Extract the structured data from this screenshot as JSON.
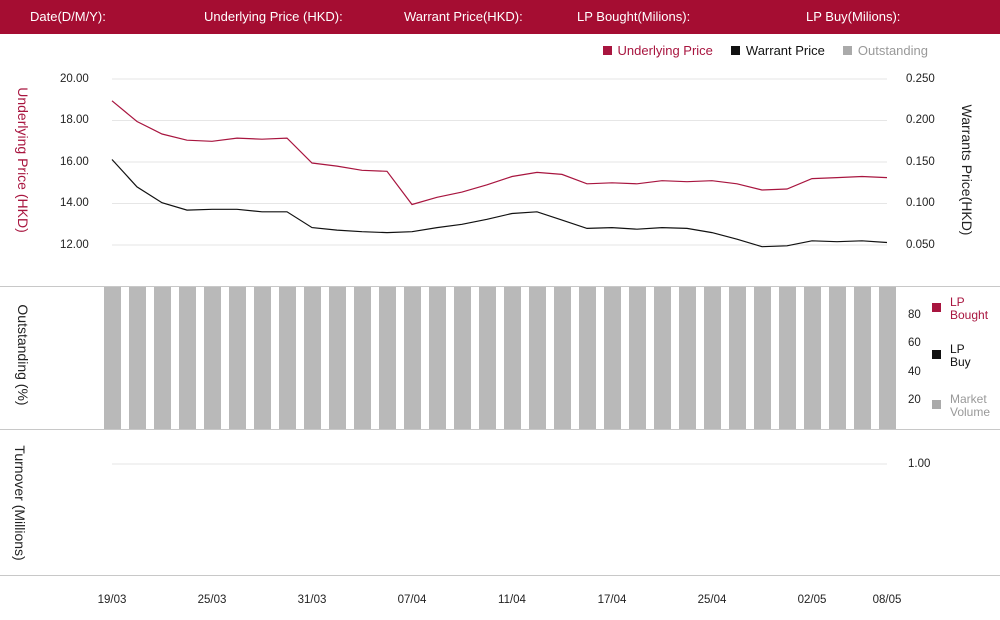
{
  "header": {
    "date_label": "Date(D/M/Y):",
    "underlying_label": "Underlying Price (HKD):",
    "warrant_label": "Warrant  Price(HKD):",
    "lp_bought_label": "LP Bought(Milions):",
    "lp_buy_label": "LP Buy(Milions):"
  },
  "colors": {
    "brand": "#a50d32",
    "underlying": "#a8153f",
    "warrant": "#111111",
    "outstanding": "#b9b9b9"
  },
  "legend_top": {
    "underlying": "Underlying Price",
    "warrant": "Warrant  Price",
    "outstanding": "Outstanding"
  },
  "panel1": {
    "left_axis_title": "Underlying Price (HKD)",
    "right_axis_title": "Warrants  Price(HKD)",
    "left_ticks": [
      "20.00",
      "18.00",
      "16.00",
      "14.00",
      "12.00"
    ],
    "right_ticks": [
      "0.250",
      "0.200",
      "0.150",
      "0.100",
      "0.050"
    ]
  },
  "panel2": {
    "axis_title": "Outstanding (%)",
    "ticks": [
      "80",
      "60",
      "40",
      "20"
    ],
    "legend": {
      "lp_bought": "LP Bought",
      "lp_buy": "LP Buy",
      "market_volume": "Market Volume"
    }
  },
  "panel3": {
    "axis_title": "Turnover (Millions)",
    "ticks": [
      "1.00"
    ]
  },
  "x_ticks": [
    "19/03",
    "25/03",
    "31/03",
    "07/04",
    "11/04",
    "17/04",
    "25/04",
    "02/05",
    "08/05"
  ],
  "chart_data": [
    {
      "type": "line",
      "x_index": [
        0,
        1,
        2,
        3,
        4,
        5,
        6,
        7,
        8,
        9,
        10,
        11,
        12,
        13,
        14,
        15,
        16,
        17,
        18,
        19,
        20,
        21,
        22,
        23,
        24,
        25,
        26,
        27,
        28,
        29,
        30,
        31
      ],
      "series": [
        {
          "name": "Underlying Price",
          "axis": "left",
          "values": [
            18.95,
            17.95,
            17.35,
            17.05,
            17.0,
            17.15,
            17.1,
            17.15,
            15.95,
            15.8,
            15.6,
            15.55,
            13.95,
            14.3,
            14.55,
            14.9,
            15.3,
            15.5,
            15.4,
            14.95,
            15.0,
            14.95,
            15.1,
            15.05,
            15.1,
            14.95,
            14.65,
            14.7,
            15.2,
            15.25,
            15.3,
            15.25
          ]
        },
        {
          "name": "Warrant  Price",
          "axis": "right",
          "values": [
            0.153,
            0.12,
            0.101,
            0.092,
            0.093,
            0.093,
            0.09,
            0.09,
            0.071,
            0.068,
            0.066,
            0.065,
            0.066,
            0.071,
            0.075,
            0.081,
            0.088,
            0.09,
            0.08,
            0.07,
            0.071,
            0.069,
            0.071,
            0.07,
            0.065,
            0.057,
            0.048,
            0.049,
            0.055,
            0.054,
            0.055,
            0.053
          ]
        }
      ],
      "left_ylim": [
        11,
        20.5
      ],
      "right_ylim": [
        0.025,
        0.25
      ],
      "grid": true
    },
    {
      "type": "bar",
      "series": [
        {
          "name": "Outstanding",
          "values": [
            100,
            100,
            100,
            100,
            100,
            100,
            100,
            100,
            100,
            100,
            100,
            100,
            100,
            100,
            100,
            100,
            100,
            100,
            100,
            100,
            100,
            100,
            100,
            100,
            100,
            100,
            100,
            100,
            100,
            100,
            100,
            100
          ]
        }
      ],
      "ylim": [
        0,
        100
      ]
    }
  ]
}
